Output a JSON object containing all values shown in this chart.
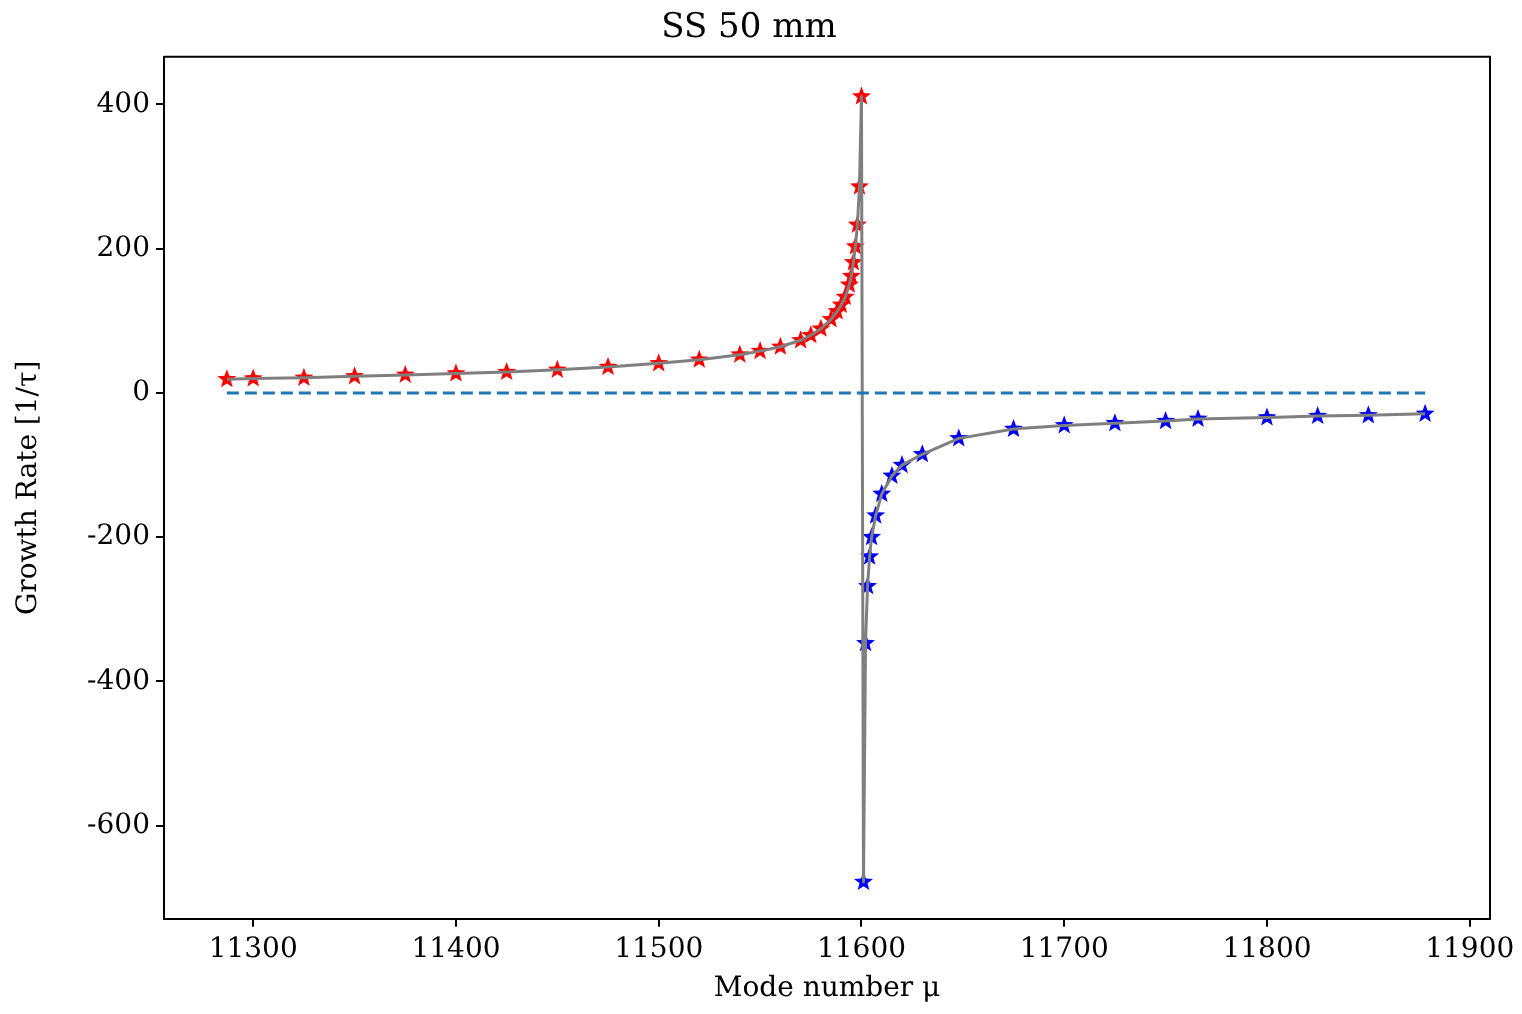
{
  "chart_data": {
    "type": "scatter",
    "title": "SS 50 mm",
    "xlabel": "Mode number μ",
    "ylabel": "Growth Rate [1/τ]",
    "xlim": [
      11256,
      11910
    ],
    "ylim": [
      -729,
      466
    ],
    "xticks": [
      11300,
      11400,
      11500,
      11600,
      11700,
      11800,
      11900
    ],
    "yticks": [
      -600,
      -400,
      -200,
      0,
      200,
      400
    ],
    "grid": false,
    "legend": false,
    "series": [
      {
        "type": "line",
        "color": "#1f77b4",
        "line_style": "dashed",
        "marker": "none",
        "x": [
          11287,
          11878
        ],
        "values": [
          0,
          0
        ]
      },
      {
        "type": "line",
        "color": "#7f7f7f",
        "line_style": "solid",
        "marker": "none",
        "x": [
          11287,
          11300,
          11325,
          11350,
          11375,
          11400,
          11425,
          11450,
          11475,
          11500,
          11520,
          11540,
          11550,
          11560,
          11570,
          11575,
          11580,
          11585,
          11588,
          11590,
          11592,
          11594,
          11595,
          11596,
          11597,
          11598,
          11599,
          11600,
          11601,
          11602,
          11603,
          11604,
          11605,
          11607,
          11610,
          11615,
          11620,
          11630,
          11648,
          11675,
          11700,
          11725,
          11750,
          11766,
          11800,
          11825,
          11850,
          11878
        ],
        "values": [
          19,
          20,
          21,
          23,
          25,
          27,
          29,
          32,
          36,
          41,
          46,
          53,
          58,
          64,
          73,
          80,
          89,
          102,
          113,
          122,
          133,
          150,
          162,
          181,
          203,
          233,
          286,
          411,
          -678,
          -347,
          -268,
          -227,
          -200,
          -170,
          -140,
          -115,
          -100,
          -85,
          -63,
          -50,
          -45,
          -42,
          -39,
          -36,
          -34,
          -32,
          -31,
          -29
        ]
      },
      {
        "color": "#ff0000",
        "marker": "star",
        "x": [
          11287,
          11300,
          11325,
          11350,
          11375,
          11400,
          11425,
          11450,
          11475,
          11500,
          11520,
          11540,
          11550,
          11560,
          11570,
          11575,
          11580,
          11585,
          11588,
          11590,
          11592,
          11594,
          11595,
          11596,
          11597,
          11598,
          11599,
          11600
        ],
        "values": [
          19,
          20,
          21,
          23,
          25,
          27,
          29,
          32,
          36,
          41,
          46,
          53,
          58,
          64,
          73,
          80,
          89,
          102,
          113,
          122,
          133,
          150,
          162,
          181,
          203,
          233,
          286,
          411
        ]
      },
      {
        "color": "#0000ff",
        "marker": "star",
        "x": [
          11601,
          11602,
          11603,
          11604,
          11605,
          11607,
          11610,
          11615,
          11620,
          11630,
          11648,
          11675,
          11700,
          11725,
          11750,
          11766,
          11800,
          11825,
          11850,
          11878
        ],
        "values": [
          -678,
          -347,
          -268,
          -227,
          -200,
          -170,
          -140,
          -115,
          -100,
          -85,
          -63,
          -50,
          -45,
          -42,
          -39,
          -36,
          -34,
          -32,
          -31,
          -29
        ]
      }
    ]
  }
}
